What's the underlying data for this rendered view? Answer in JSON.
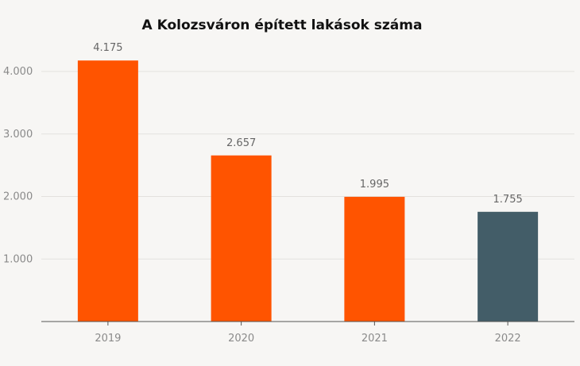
{
  "chart_data": {
    "type": "bar",
    "title": "A Kolozsváron épített lakások száma",
    "categories": [
      "2019",
      "2020",
      "2021",
      "2022"
    ],
    "values": [
      4175,
      2657,
      1995,
      1755
    ],
    "value_labels": [
      "4.175",
      "2.657",
      "1.995",
      "1.755"
    ],
    "bar_colors": [
      "#ff5400",
      "#ff5400",
      "#ff5400",
      "#435d68"
    ],
    "y_ticks": [
      1000,
      2000,
      3000,
      4000
    ],
    "y_tick_labels": [
      "1.000",
      "2.000",
      "3.000",
      "4.000"
    ],
    "ylim": [
      0,
      4000
    ],
    "xlabel": "",
    "ylabel": "",
    "grid": true,
    "colors": {
      "background": "#f7f6f4",
      "grid": "#e3e1de",
      "axis": "#555555"
    }
  }
}
